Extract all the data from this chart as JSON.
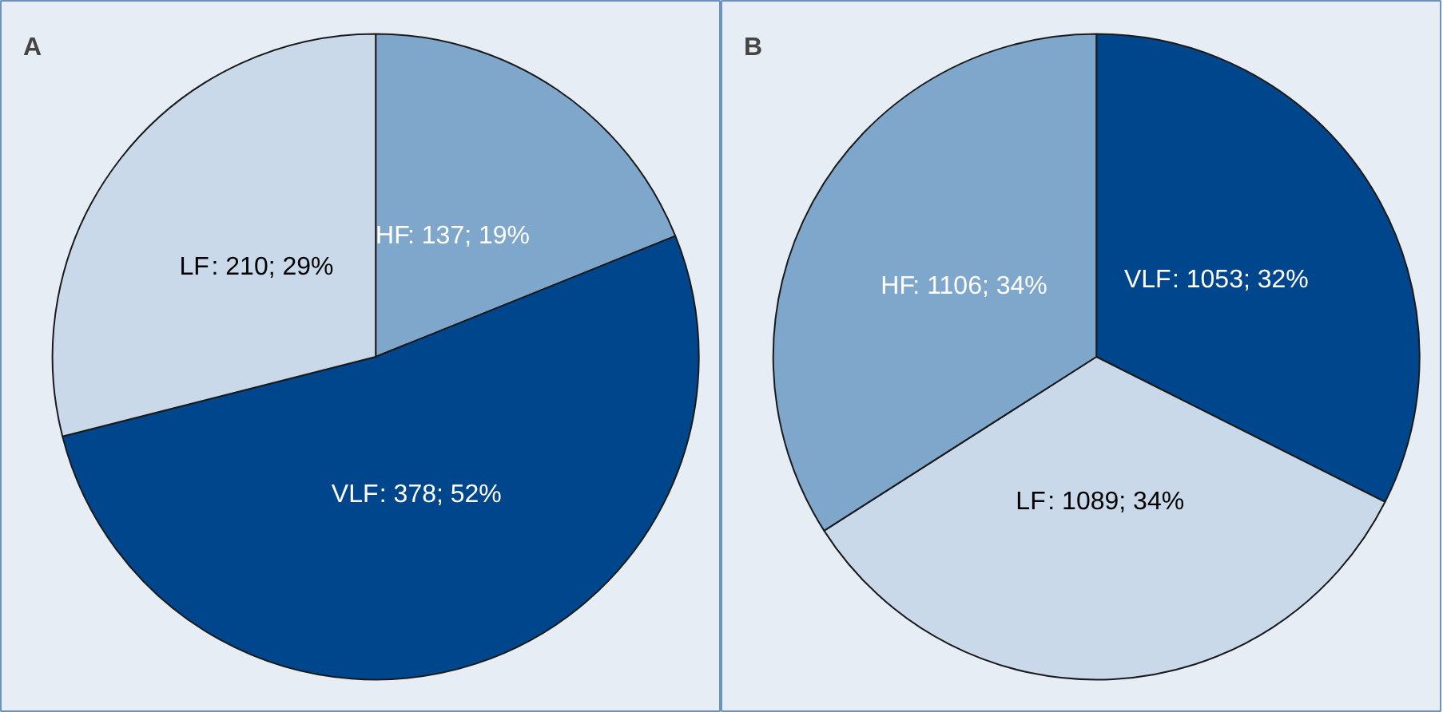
{
  "chart_data": [
    {
      "type": "pie",
      "title": "A",
      "categories": [
        "HF",
        "VLF",
        "LF"
      ],
      "values": [
        137,
        378,
        210
      ],
      "colors": [
        "#7fa6cb",
        "#00468c",
        "#c9d9ea"
      ],
      "value_labels": [
        ": 137; 19%",
        ": 378; 52%",
        ": 210; 29%"
      ]
    },
    {
      "type": "pie",
      "title": "B",
      "categories": [
        "VLF",
        "LF",
        "HF"
      ],
      "values": [
        1053,
        1089,
        1106
      ],
      "colors": [
        "#00468c",
        "#c9d9ea",
        "#7fa6cb"
      ],
      "value_labels": [
        ": 1053; 32%",
        ": 1089; 34%",
        ": 1106; 34%"
      ]
    }
  ]
}
